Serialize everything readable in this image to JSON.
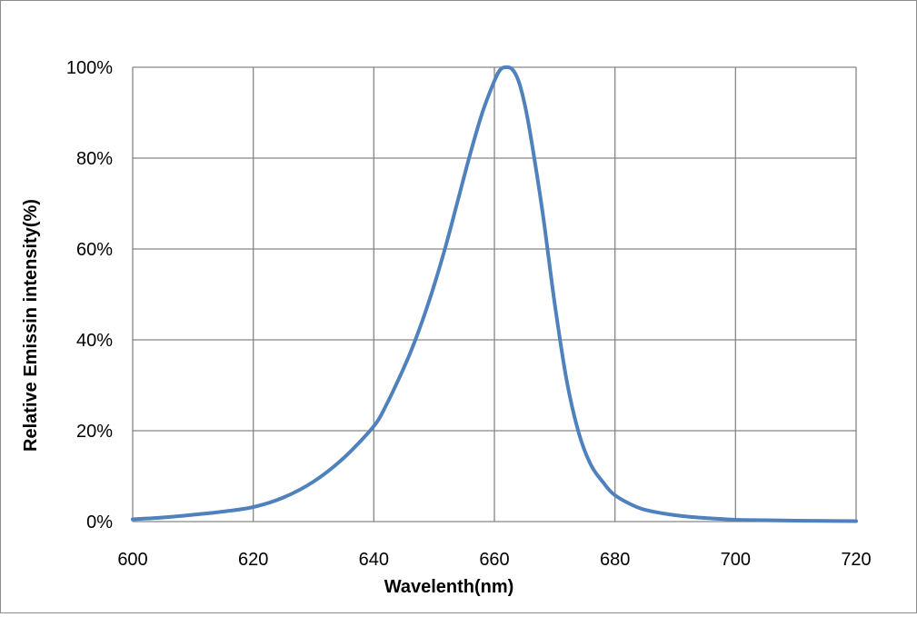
{
  "chart_data": {
    "type": "line",
    "title": "",
    "xlabel": "Wavelenth(nm)",
    "ylabel": "Relative Emissin intensity(%)",
    "xlim": [
      600,
      720
    ],
    "ylim": [
      0,
      100
    ],
    "x_ticks": [
      600,
      620,
      640,
      660,
      680,
      700,
      720
    ],
    "x_tick_labels": [
      "600",
      "620",
      "640",
      "660",
      "680",
      "700",
      "720"
    ],
    "y_ticks": [
      0,
      20,
      40,
      60,
      80,
      100
    ],
    "y_tick_labels": [
      "0%",
      "20%",
      "40%",
      "60%",
      "80%",
      "100%"
    ],
    "grid": true,
    "legend": "none",
    "colors": {
      "line": "#4f81bd",
      "grid": "#868686",
      "frame": "#8c8c8c"
    },
    "series": [
      {
        "x": [
          600,
          605,
          610,
          615,
          620,
          625,
          630,
          635,
          640,
          642,
          644,
          646,
          648,
          650,
          652,
          654,
          656,
          658,
          660,
          661,
          662,
          663,
          664,
          665,
          666,
          668,
          670,
          672,
          674,
          676,
          678,
          680,
          684,
          688,
          692,
          696,
          700,
          705,
          710,
          715,
          720
        ],
        "y": [
          0.5,
          0.9,
          1.5,
          2.2,
          3.2,
          5.3,
          8.8,
          14,
          21,
          25.5,
          31,
          37,
          44,
          52,
          61,
          71,
          81,
          90,
          97,
          99.5,
          100,
          99.5,
          97,
          92,
          85,
          68,
          48,
          31,
          19.5,
          12.5,
          8.7,
          5.8,
          3.0,
          1.8,
          1.1,
          0.7,
          0.4,
          0.3,
          0.2,
          0.15,
          0.1
        ]
      }
    ]
  }
}
